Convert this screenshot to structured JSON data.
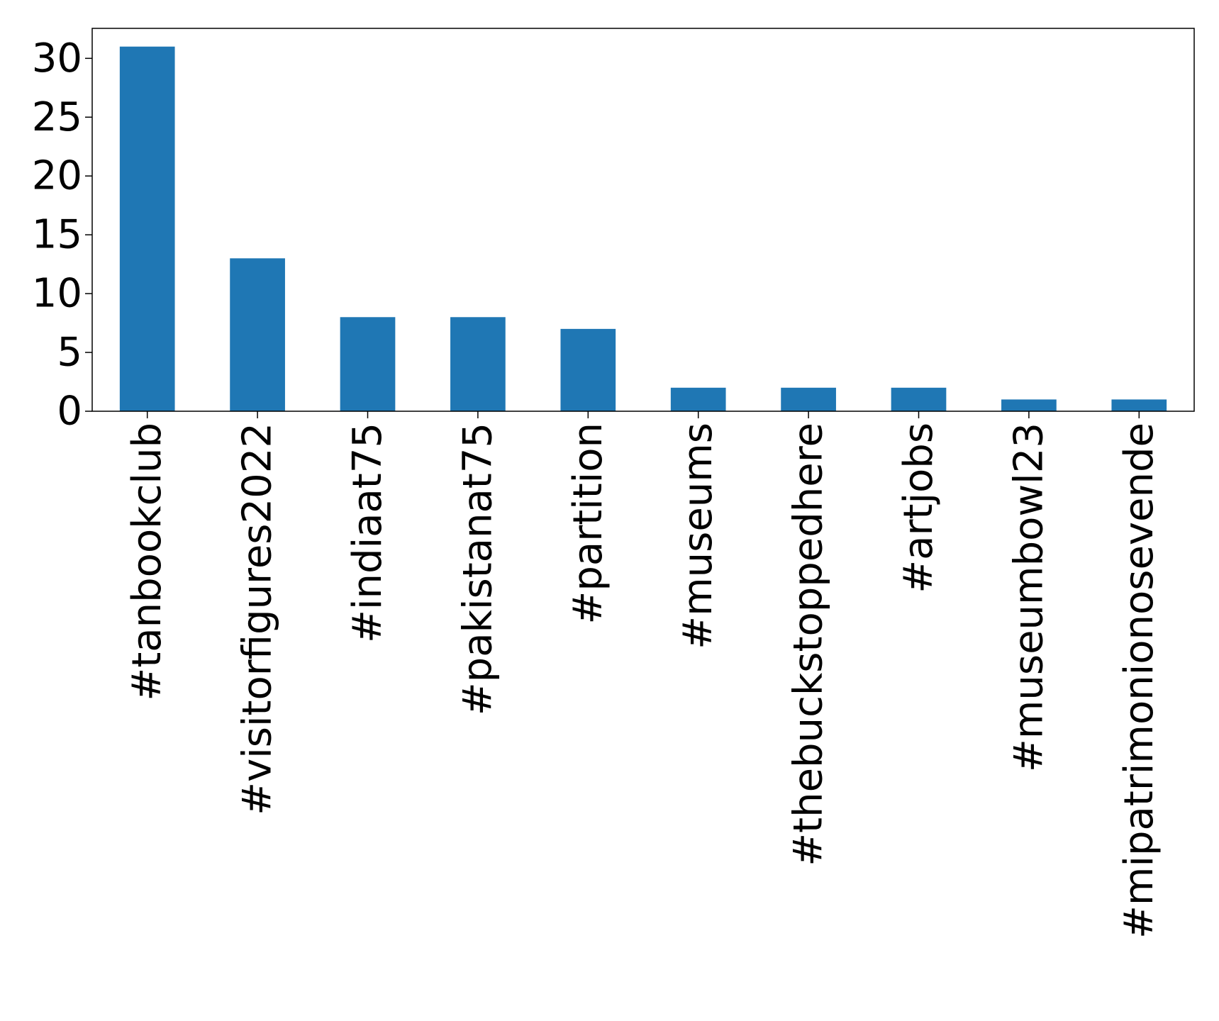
{
  "chart_data": {
    "type": "bar",
    "title": "",
    "xlabel": "",
    "ylabel": "",
    "categories": [
      "#tanbookclub",
      "#visitorfigures2022",
      "#indiaat75",
      "#pakistanat75",
      "#partition",
      "#museums",
      "#thebuckstoppedhere",
      "#artjobs",
      "#museumbowl23",
      "#mipatrimonionosevende"
    ],
    "values": [
      31,
      13,
      8,
      8,
      7,
      2,
      2,
      2,
      1,
      1
    ],
    "ylim": [
      0,
      32.55
    ],
    "yticks": [
      0,
      5,
      10,
      15,
      20,
      25,
      30
    ],
    "grid": false,
    "legend": "none",
    "bar_color": "#1f77b4",
    "axis_color": "#000000",
    "background": "#ffffff"
  }
}
